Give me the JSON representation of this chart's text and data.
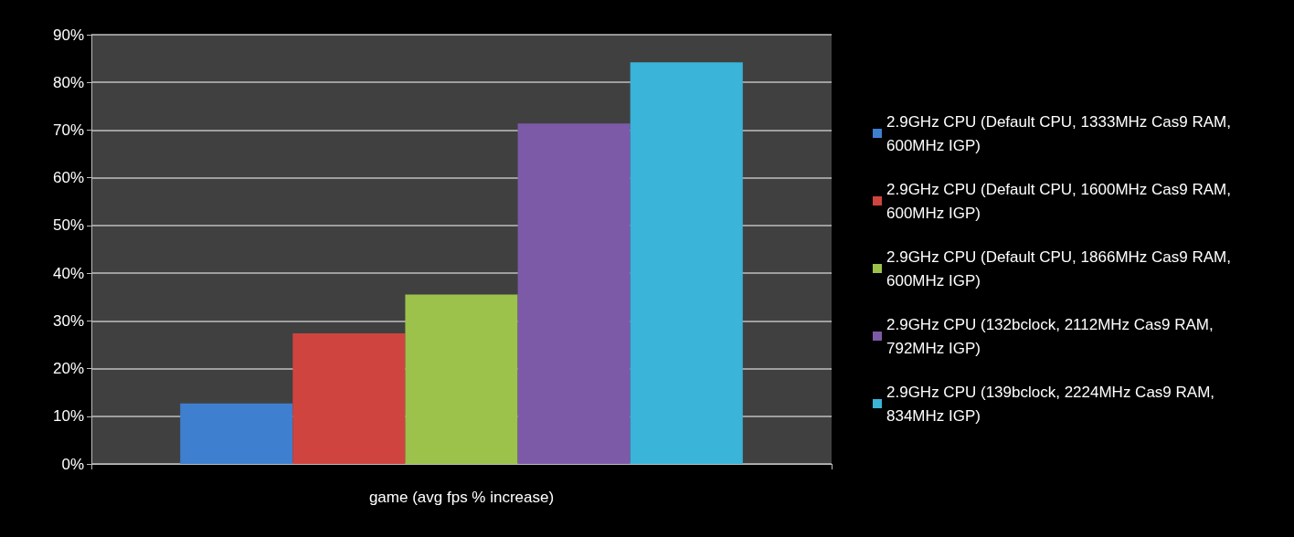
{
  "chart_data": {
    "type": "bar",
    "xlabel": null,
    "categories": [
      "game (avg fps % increase)"
    ],
    "series": [
      {
        "name": "2.9GHz CPU (Default CPU, 1333MHz Cas9 RAM, 600MHz IGP)",
        "color": "#3f7fd0",
        "values": [
          12.7
        ]
      },
      {
        "name": "2.9GHz CPU (Default CPU, 1600MHz Cas9 RAM, 600MHz IGP)",
        "color": "#d04440",
        "values": [
          27.4
        ]
      },
      {
        "name": "2.9GHz CPU (Default CPU, 1866MHz Cas9 RAM, 600MHz IGP)",
        "color": "#9cc24c",
        "values": [
          35.5
        ]
      },
      {
        "name": "2.9GHz CPU (132bclock, 2112MHz Cas9 RAM, 792MHz IGP)",
        "color": "#7d5aa8",
        "values": [
          71.4
        ]
      },
      {
        "name": "2.9GHz CPU (139bclock, 2224MHz Cas9 RAM, 834MHz IGP)",
        "color": "#3ab4d8",
        "values": [
          84.2
        ]
      }
    ],
    "ylim": [
      0,
      90
    ],
    "yticks": [
      {
        "value": 0,
        "label": "0%"
      },
      {
        "value": 10,
        "label": "10%"
      },
      {
        "value": 20,
        "label": "20%"
      },
      {
        "value": 30,
        "label": "30%"
      },
      {
        "value": 40,
        "label": "40%"
      },
      {
        "value": 50,
        "label": "50%"
      },
      {
        "value": 60,
        "label": "60%"
      },
      {
        "value": 70,
        "label": "70%"
      },
      {
        "value": 80,
        "label": "80%"
      },
      {
        "value": 90,
        "label": "90%"
      }
    ],
    "grid": "y",
    "legend": "right"
  }
}
